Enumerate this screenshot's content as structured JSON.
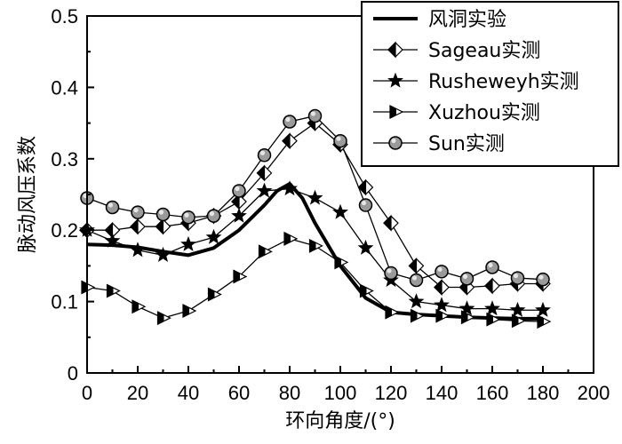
{
  "chart_data": {
    "type": "line",
    "xlabel": "环向角度/(°)",
    "ylabel": "脉动风压系数",
    "xlim": [
      0,
      200
    ],
    "ylim": [
      0,
      0.5
    ],
    "x_ticks": [
      "0",
      "20",
      "40",
      "60",
      "80",
      "100",
      "120",
      "140",
      "160",
      "180",
      "200"
    ],
    "y_ticks": [
      "0",
      "0.1",
      "0.2",
      "0.3",
      "0.4",
      "0.5"
    ],
    "legend_position": "top-right",
    "grid": false,
    "series": [
      {
        "name": "风洞实验",
        "marker": "none",
        "x": [
          0,
          10,
          20,
          30,
          40,
          50,
          60,
          70,
          75,
          80,
          85,
          90,
          100,
          110,
          120,
          130,
          140,
          150,
          160,
          170,
          180
        ],
        "y": [
          0.18,
          0.179,
          0.176,
          0.17,
          0.165,
          0.175,
          0.2,
          0.235,
          0.255,
          0.265,
          0.245,
          0.21,
          0.15,
          0.105,
          0.085,
          0.082,
          0.08,
          0.078,
          0.077,
          0.076,
          0.076
        ]
      },
      {
        "name": "Sageau实测",
        "marker": "diamond-half",
        "x": [
          0,
          10,
          20,
          30,
          40,
          50,
          60,
          70,
          80,
          90,
          100,
          110,
          120,
          130,
          140,
          150,
          160,
          170,
          180
        ],
        "y": [
          0.2,
          0.2,
          0.205,
          0.205,
          0.21,
          0.22,
          0.24,
          0.28,
          0.325,
          0.35,
          0.32,
          0.26,
          0.21,
          0.15,
          0.12,
          0.12,
          0.122,
          0.125,
          0.125
        ]
      },
      {
        "name": "Rusheweyh实测",
        "marker": "star",
        "x": [
          0,
          10,
          20,
          30,
          40,
          50,
          60,
          70,
          80,
          90,
          100,
          110,
          120,
          130,
          140,
          150,
          160,
          170,
          180
        ],
        "y": [
          0.2,
          0.185,
          0.172,
          0.165,
          0.18,
          0.19,
          0.22,
          0.255,
          0.258,
          0.245,
          0.225,
          0.175,
          0.13,
          0.1,
          0.095,
          0.09,
          0.09,
          0.088,
          0.088
        ]
      },
      {
        "name": "Xuzhou实测",
        "marker": "triangle-right",
        "x": [
          0,
          10,
          20,
          30,
          40,
          50,
          60,
          70,
          80,
          90,
          100,
          110,
          120,
          130,
          140,
          150,
          160,
          170,
          180
        ],
        "y": [
          0.12,
          0.115,
          0.093,
          0.077,
          0.087,
          0.11,
          0.135,
          0.17,
          0.188,
          0.178,
          0.155,
          0.115,
          0.085,
          0.08,
          0.08,
          0.078,
          0.075,
          0.073,
          0.072
        ]
      },
      {
        "name": "Sun实测",
        "marker": "circle",
        "x": [
          0,
          10,
          20,
          30,
          40,
          50,
          60,
          70,
          80,
          90,
          100,
          110,
          120,
          130,
          140,
          150,
          160,
          170,
          180
        ],
        "y": [
          0.245,
          0.232,
          0.225,
          0.222,
          0.218,
          0.22,
          0.255,
          0.305,
          0.352,
          0.36,
          0.325,
          0.235,
          0.14,
          0.13,
          0.142,
          0.132,
          0.148,
          0.133,
          0.131
        ]
      }
    ]
  }
}
